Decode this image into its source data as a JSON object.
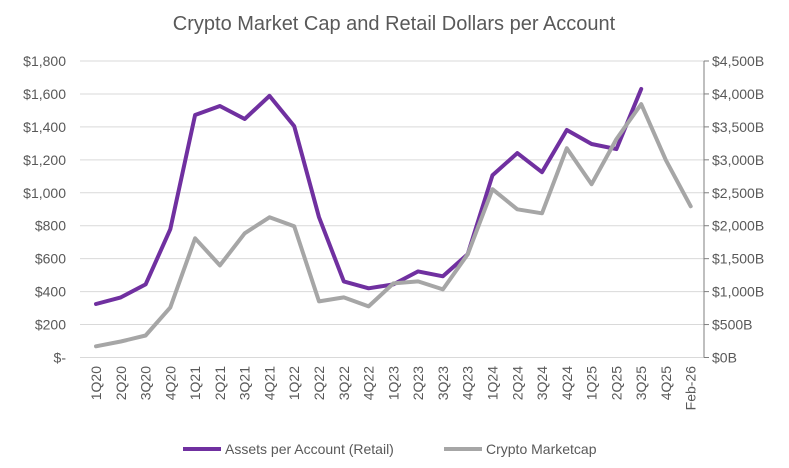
{
  "chart_data": {
    "type": "line",
    "title": "Crypto Market Cap and Retail Dollars per Account",
    "categories": [
      "1Q20",
      "2Q20",
      "3Q20",
      "4Q20",
      "1Q21",
      "2Q21",
      "3Q21",
      "4Q21",
      "1Q22",
      "2Q22",
      "3Q22",
      "4Q22",
      "1Q23",
      "2Q23",
      "3Q23",
      "4Q23",
      "1Q24",
      "2Q24",
      "3Q24",
      "4Q24",
      "1Q25",
      "2Q25",
      "3Q25",
      "4Q25",
      "Feb-26"
    ],
    "left_axis": {
      "ylim": [
        0,
        1800
      ],
      "ticks": [
        0,
        200,
        400,
        600,
        800,
        1000,
        1200,
        1400,
        1600,
        1800
      ],
      "tick_labels": [
        "$-",
        "$200",
        "$400",
        "$600",
        "$800",
        "$1,000",
        "$1,200",
        "$1,400",
        "$1,600",
        "$1,800"
      ]
    },
    "right_axis": {
      "ylim": [
        0,
        4500
      ],
      "ticks": [
        0,
        500,
        1000,
        1500,
        2000,
        2500,
        3000,
        3500,
        4000,
        4500
      ],
      "tick_labels": [
        "$0B",
        "$500B",
        "$1,000B",
        "$1,500B",
        "$2,000B",
        "$2,500B",
        "$3,000B",
        "$3,500B",
        "$4,000B",
        "$4,500B"
      ]
    },
    "grid": true,
    "legend_position": "bottom",
    "series": [
      {
        "name": "Assets per Account (Retail)",
        "axis": "left",
        "color": "#7030A0",
        "values": [
          325,
          365,
          444,
          779,
          1472,
          1527,
          1448,
          1588,
          1405,
          852,
          462,
          420,
          444,
          523,
          493,
          627,
          1107,
          1241,
          1125,
          1381,
          1296,
          1265,
          1630,
          null,
          null
        ]
      },
      {
        "name": "Crypto Marketcap",
        "axis": "right",
        "color": "#A6A6A6",
        "values": [
          170,
          243,
          334,
          760,
          1809,
          1398,
          1885,
          2128,
          1991,
          851,
          912,
          775,
          1125,
          1155,
          1034,
          1566,
          2554,
          2250,
          2189,
          3177,
          2630,
          3314,
          3846,
          2994,
          2295
        ]
      }
    ]
  }
}
